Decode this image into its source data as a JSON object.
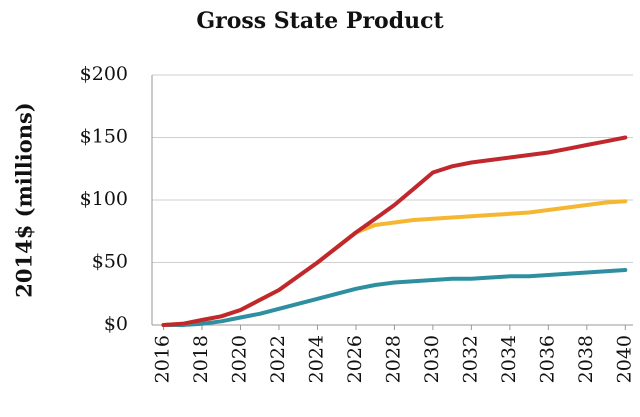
{
  "chart_data": {
    "type": "line",
    "title": "Gross State Product",
    "y_label": "2014$ (millions)",
    "x": [
      2016,
      2017,
      2018,
      2019,
      2020,
      2021,
      2022,
      2023,
      2024,
      2025,
      2026,
      2027,
      2028,
      2029,
      2030,
      2031,
      2032,
      2033,
      2034,
      2035,
      2036,
      2037,
      2038,
      2039,
      2040
    ],
    "series": [
      {
        "color": "#2e8fa0",
        "values": [
          0,
          0,
          1,
          3,
          6,
          9,
          13,
          17,
          21,
          25,
          29,
          32,
          34,
          35,
          36,
          37,
          37,
          38,
          39,
          39,
          40,
          41,
          42,
          43,
          44
        ]
      },
      {
        "color": "#f5b731",
        "values": [
          0,
          1,
          4,
          7,
          12,
          20,
          28,
          39,
          50,
          62,
          74,
          80,
          82,
          84,
          85,
          86,
          87,
          88,
          89,
          90,
          92,
          94,
          96,
          98,
          99
        ]
      },
      {
        "color": "#c0282e",
        "values": [
          0,
          1,
          4,
          7,
          12,
          20,
          28,
          39,
          50,
          62,
          74,
          85,
          96,
          109,
          122,
          127,
          130,
          132,
          134,
          136,
          138,
          141,
          144,
          147,
          150
        ]
      }
    ],
    "xlim": [
      2015.4,
      2040.4
    ],
    "xticks": [
      2016,
      2018,
      2020,
      2022,
      2024,
      2026,
      2028,
      2030,
      2032,
      2034,
      2036,
      2038,
      2040
    ],
    "ylim": [
      0,
      200
    ],
    "yticks": [
      {
        "value": 0,
        "label": "$0"
      },
      {
        "value": 50,
        "label": "$50"
      },
      {
        "value": 100,
        "label": "$100"
      },
      {
        "value": 150,
        "label": "$150"
      },
      {
        "value": 200,
        "label": "$200"
      }
    ],
    "grid": true
  }
}
